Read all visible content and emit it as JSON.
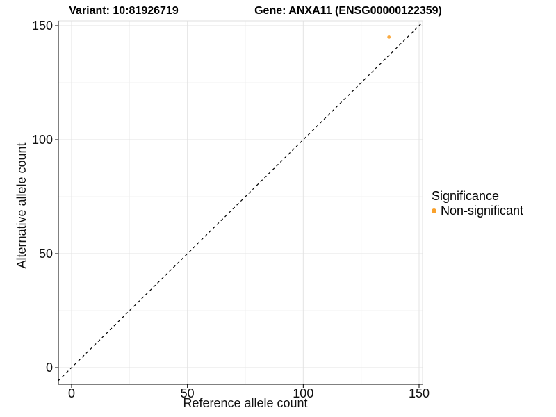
{
  "chart_data": {
    "type": "scatter",
    "title_left": "Variant: 10:81926719",
    "title_right": "Gene: ANXA11 (ENSG00000122359)",
    "xlabel": "Reference allele count",
    "ylabel": "Alternative allele count",
    "xlim": [
      0,
      150
    ],
    "ylim": [
      0,
      150
    ],
    "x_ticks": [
      0,
      50,
      100,
      150
    ],
    "y_ticks": [
      0,
      50,
      100,
      150
    ],
    "grid": {
      "major": true,
      "minor": true
    },
    "reference_line": {
      "slope": 1,
      "intercept": 0,
      "style": "dashed",
      "color": "#000000"
    },
    "legend": {
      "title": "Significance",
      "position": "right",
      "items": [
        {
          "label": "Non-significant",
          "color": "#F9A12C"
        }
      ]
    },
    "series": [
      {
        "name": "Non-significant",
        "color": "#F9A12C",
        "points": [
          {
            "x": 137,
            "y": 145
          }
        ]
      }
    ]
  },
  "colors": {
    "background": "#FFFFFF",
    "panel_background": "#FFFFFF",
    "grid_major": "#E3E3E3",
    "grid_minor": "#F1F1F1",
    "panel_border": "#DFDFDF",
    "axis_line": "#000000",
    "tick_mark": "#000000",
    "text": "#000000"
  }
}
